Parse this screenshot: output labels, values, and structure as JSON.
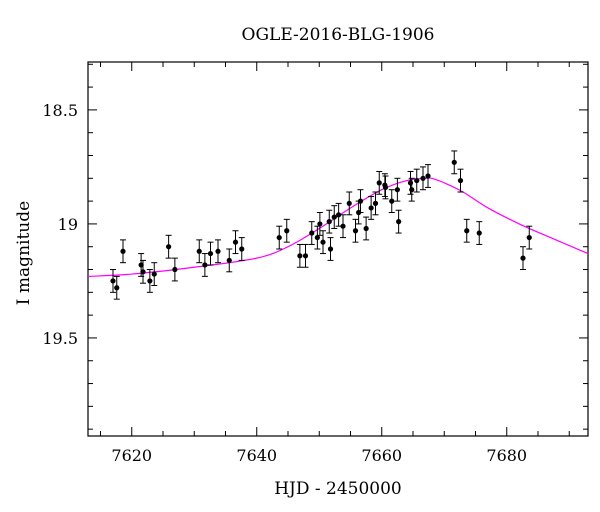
{
  "chart_data": {
    "type": "scatter",
    "title": "OGLE-2016-BLG-1906",
    "xlabel": "HJD - 2450000",
    "ylabel": "I magnitude",
    "xlim": [
      7613,
      7693
    ],
    "ylim": [
      19.93,
      18.29
    ],
    "y_inverted": true,
    "grid": false,
    "x_major_ticks": [
      7620,
      7640,
      7660,
      7680
    ],
    "x_tick_labels": [
      "7620",
      "7640",
      "7660",
      "7680"
    ],
    "y_major_ticks": [
      18.5,
      19,
      19.5
    ],
    "y_tick_labels": [
      "18.5",
      "19",
      "19.5"
    ],
    "colors": {
      "points": "#000000",
      "model_curve": "#ff00ff"
    },
    "series": [
      {
        "kind": "points_with_errorbars",
        "x": [
          7617.0,
          7617.6,
          7618.6,
          7621.5,
          7621.8,
          7622.9,
          7623.6,
          7625.9,
          7626.9,
          7630.8,
          7631.7,
          7632.6,
          7633.8,
          7635.6,
          7636.6,
          7637.6,
          7643.6,
          7644.8,
          7646.9,
          7647.8,
          7648.8,
          7649.7,
          7650.1,
          7650.6,
          7651.6,
          7651.8,
          7652.4,
          7653.1,
          7653.8,
          7654.8,
          7655.8,
          7656.3,
          7656.6,
          7657.5,
          7658.3,
          7659.0,
          7659.6,
          7660.5,
          7660.6,
          7661.6,
          7662.5,
          7662.7,
          7664.6,
          7664.8,
          7665.6,
          7666.6,
          7667.4,
          7671.6,
          7672.6,
          7673.6,
          7675.6,
          7682.6,
          7683.6
        ],
        "y": [
          19.25,
          19.28,
          19.12,
          19.18,
          19.21,
          19.25,
          19.22,
          19.1,
          19.2,
          19.12,
          19.18,
          19.13,
          19.12,
          19.16,
          19.08,
          19.11,
          19.06,
          19.03,
          19.14,
          19.14,
          19.04,
          19.06,
          19.0,
          19.08,
          18.99,
          19.11,
          18.97,
          18.96,
          19.01,
          18.91,
          19.03,
          18.95,
          18.9,
          19.02,
          18.93,
          18.91,
          18.82,
          18.83,
          18.84,
          18.9,
          18.85,
          18.99,
          18.82,
          18.85,
          18.81,
          18.8,
          18.79,
          18.73,
          18.81,
          19.03,
          19.04,
          19.15,
          19.06
        ],
        "yerr": [
          0.05,
          0.05,
          0.05,
          0.05,
          0.05,
          0.05,
          0.05,
          0.05,
          0.05,
          0.05,
          0.05,
          0.05,
          0.05,
          0.05,
          0.05,
          0.05,
          0.05,
          0.05,
          0.05,
          0.05,
          0.05,
          0.05,
          0.05,
          0.05,
          0.05,
          0.05,
          0.05,
          0.05,
          0.05,
          0.05,
          0.05,
          0.05,
          0.05,
          0.05,
          0.05,
          0.05,
          0.05,
          0.05,
          0.05,
          0.05,
          0.05,
          0.05,
          0.05,
          0.05,
          0.05,
          0.05,
          0.05,
          0.05,
          0.05,
          0.05,
          0.05,
          0.05,
          0.05
        ]
      },
      {
        "kind": "line",
        "x": [
          7613,
          7620,
          7630,
          7640,
          7645,
          7650,
          7655,
          7660,
          7664,
          7667,
          7668,
          7670,
          7673,
          7677,
          7682,
          7687,
          7693
        ],
        "y": [
          19.23,
          19.22,
          19.19,
          19.15,
          19.1,
          19.02,
          18.93,
          18.85,
          18.81,
          18.8,
          18.8,
          18.82,
          18.86,
          18.93,
          19.0,
          19.06,
          19.13
        ]
      }
    ]
  }
}
